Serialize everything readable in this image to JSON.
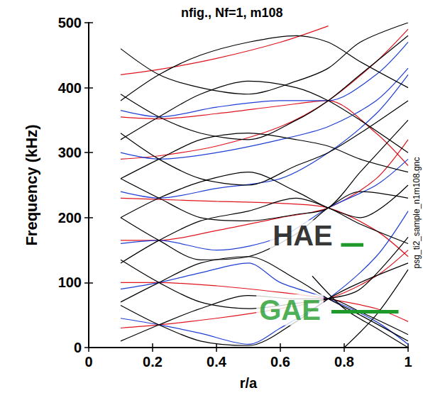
{
  "chart_data": {
    "type": "line",
    "title": "nfig., Nf=1, m108",
    "x_label": "r/a",
    "y_label": "Frequency (kHz)",
    "xlim": [
      0,
      1
    ],
    "xticks": [
      0,
      0.2,
      0.4,
      0.6,
      0.8,
      1
    ],
    "ylim": [
      0,
      500
    ],
    "yticks": [
      0,
      100,
      200,
      300,
      400,
      500
    ],
    "grid": false,
    "side_note": "psg_ti2_sample_n1m108.gnc",
    "series": [
      {
        "color": "#e0141e",
        "x": [
          0.1,
          0.22,
          0.4,
          0.6,
          0.75,
          0.9,
          1.0
        ],
        "values": [
          30,
          35,
          45,
          60,
          75,
          110,
          150
        ]
      },
      {
        "color": "#e0141e",
        "x": [
          0.1,
          0.22,
          0.4,
          0.6,
          0.75,
          0.9,
          1.0
        ],
        "values": [
          100,
          100,
          95,
          85,
          75,
          60,
          40
        ]
      },
      {
        "color": "#e0141e",
        "x": [
          0.1,
          0.22,
          0.4,
          0.6,
          0.75,
          0.9,
          1.0
        ],
        "values": [
          165,
          165,
          180,
          200,
          215,
          260,
          320
        ]
      },
      {
        "color": "#e0141e",
        "x": [
          0.1,
          0.22,
          0.4,
          0.6,
          0.75,
          0.9,
          1.0
        ],
        "values": [
          230,
          228,
          225,
          222,
          215,
          180,
          140
        ]
      },
      {
        "color": "#e0141e",
        "x": [
          0.1,
          0.22,
          0.4,
          0.6,
          0.75,
          0.9,
          1.0
        ],
        "values": [
          290,
          295,
          310,
          340,
          380,
          440,
          490
        ]
      },
      {
        "color": "#e0141e",
        "x": [
          0.1,
          0.22,
          0.4,
          0.6,
          0.75,
          0.9,
          1.0
        ],
        "values": [
          355,
          352,
          360,
          372,
          380,
          330,
          280
        ]
      },
      {
        "color": "#e0141e",
        "x": [
          0.1,
          0.22,
          0.4,
          0.6,
          0.75
        ],
        "values": [
          420,
          428,
          445,
          470,
          495
        ]
      },
      {
        "color": "#1f3fd6",
        "x": [
          0.1,
          0.22,
          0.35,
          0.5,
          0.6,
          0.75,
          0.9,
          1.0
        ],
        "values": [
          45,
          35,
          22,
          5,
          30,
          75,
          140,
          210
        ]
      },
      {
        "color": "#1f3fd6",
        "x": [
          0.1,
          0.22,
          0.35,
          0.5,
          0.6,
          0.75,
          0.9,
          1.0
        ],
        "values": [
          90,
          100,
          115,
          130,
          100,
          75,
          40,
          5
        ]
      },
      {
        "color": "#1f3fd6",
        "x": [
          0.1,
          0.22,
          0.4,
          0.6,
          0.75,
          0.9,
          1.0
        ],
        "values": [
          160,
          165,
          150,
          170,
          215,
          250,
          290
        ]
      },
      {
        "color": "#1f3fd6",
        "x": [
          0.1,
          0.22,
          0.4,
          0.6,
          0.75,
          0.9,
          1.0
        ],
        "values": [
          240,
          230,
          245,
          260,
          300,
          360,
          420
        ]
      },
      {
        "color": "#1f3fd6",
        "x": [
          0.1,
          0.22,
          0.4,
          0.6,
          0.75,
          0.9,
          1.0
        ],
        "values": [
          300,
          290,
          300,
          320,
          340,
          380,
          430
        ]
      },
      {
        "color": "#1f3fd6",
        "x": [
          0.1,
          0.22,
          0.4,
          0.6,
          0.75,
          0.9,
          1.0
        ],
        "values": [
          365,
          355,
          370,
          380,
          380,
          420,
          470
        ]
      },
      {
        "color": "#000000",
        "x": [
          0.1,
          0.22,
          0.35,
          0.5,
          0.65,
          0.75,
          0.85,
          1.0
        ],
        "values": [
          10,
          35,
          60,
          80,
          75,
          75,
          55,
          20
        ]
      },
      {
        "color": "#000000",
        "x": [
          0.1,
          0.22,
          0.35,
          0.5,
          0.65,
          0.75,
          0.85,
          1.0
        ],
        "values": [
          65,
          35,
          10,
          3,
          40,
          75,
          100,
          130
        ]
      },
      {
        "color": "#000000",
        "x": [
          0.1,
          0.22,
          0.35,
          0.5,
          0.65,
          0.75,
          0.85,
          1.0
        ],
        "values": [
          135,
          100,
          70,
          60,
          68,
          75,
          90,
          170
        ]
      },
      {
        "color": "#000000",
        "x": [
          0.1,
          0.22,
          0.35,
          0.5,
          0.65,
          0.75,
          0.85,
          1.0
        ],
        "values": [
          70,
          100,
          130,
          140,
          105,
          75,
          50,
          10
        ]
      },
      {
        "color": "#000000",
        "x": [
          0.1,
          0.22,
          0.35,
          0.5,
          0.65,
          0.75,
          0.85,
          1.0
        ],
        "values": [
          200,
          165,
          135,
          140,
          175,
          215,
          240,
          230
        ]
      },
      {
        "color": "#000000",
        "x": [
          0.1,
          0.22,
          0.35,
          0.5,
          0.65,
          0.75,
          0.85,
          1.0
        ],
        "values": [
          130,
          165,
          195,
          210,
          230,
          215,
          190,
          160
        ]
      },
      {
        "color": "#000000",
        "x": [
          0.1,
          0.22,
          0.35,
          0.5,
          0.65,
          0.75,
          0.85,
          1.0
        ],
        "values": [
          260,
          230,
          200,
          195,
          205,
          215,
          270,
          350
        ]
      },
      {
        "color": "#000000",
        "x": [
          0.1,
          0.22,
          0.35,
          0.5,
          0.65,
          0.75,
          0.85,
          1.0
        ],
        "values": [
          200,
          230,
          255,
          270,
          240,
          215,
          200,
          250
        ]
      },
      {
        "color": "#000000",
        "x": [
          0.1,
          0.22,
          0.35,
          0.5,
          0.65,
          0.75,
          0.85,
          1.0
        ],
        "values": [
          330,
          290,
          260,
          250,
          280,
          300,
          330,
          380
        ]
      },
      {
        "color": "#000000",
        "x": [
          0.1,
          0.22,
          0.35,
          0.5,
          0.65,
          0.75,
          0.85,
          1.0
        ],
        "values": [
          260,
          290,
          320,
          330,
          320,
          310,
          290,
          270
        ]
      },
      {
        "color": "#000000",
        "x": [
          0.1,
          0.22,
          0.35,
          0.5,
          0.65,
          0.75,
          0.85,
          1.0
        ],
        "values": [
          390,
          355,
          330,
          320,
          350,
          380,
          420,
          480
        ]
      },
      {
        "color": "#000000",
        "x": [
          0.1,
          0.22,
          0.35,
          0.5,
          0.65,
          0.75,
          0.85,
          1.0
        ],
        "values": [
          320,
          355,
          390,
          410,
          400,
          380,
          350,
          300
        ]
      },
      {
        "color": "#000000",
        "x": [
          0.1,
          0.22,
          0.35,
          0.5,
          0.65,
          0.75,
          0.85,
          1.0
        ],
        "values": [
          460,
          420,
          400,
          390,
          410,
          430,
          470,
          500
        ]
      },
      {
        "color": "#000000",
        "x": [
          0.1,
          0.22,
          0.35,
          0.5,
          0.65,
          0.75,
          0.85,
          1.0
        ],
        "values": [
          380,
          420,
          450,
          470,
          480,
          470,
          440,
          400
        ]
      },
      {
        "color": "#000000",
        "x": [
          0.7,
          0.8,
          0.9,
          1.0
        ],
        "values": [
          110,
          60,
          30,
          0
        ]
      },
      {
        "color": "#000000",
        "x": [
          0.8,
          0.9,
          1.0
        ],
        "values": [
          0,
          50,
          120
        ]
      }
    ],
    "segments": [
      {
        "color": "#1e9a2a",
        "x": [
          0.76,
          0.97
        ],
        "values": [
          55,
          55
        ]
      },
      {
        "color": "#1e9a2a",
        "x": [
          0.79,
          0.86
        ],
        "values": [
          158,
          158
        ]
      }
    ],
    "annotations": [
      {
        "text": "HAE",
        "x": 0.67,
        "y": 172,
        "color": "#000000"
      },
      {
        "text": "GAE",
        "x": 0.63,
        "y": 58,
        "color": "#1e9a2a"
      }
    ]
  }
}
